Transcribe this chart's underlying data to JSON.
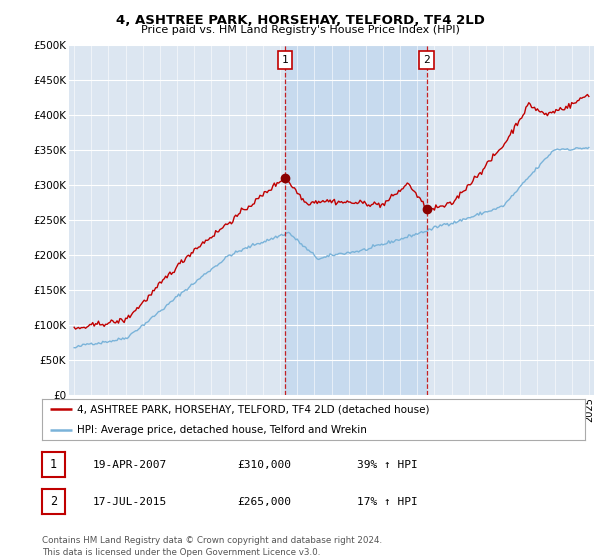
{
  "title": "4, ASHTREE PARK, HORSEHAY, TELFORD, TF4 2LD",
  "subtitle": "Price paid vs. HM Land Registry's House Price Index (HPI)",
  "ylabel_ticks": [
    "£0",
    "£50K",
    "£100K",
    "£150K",
    "£200K",
    "£250K",
    "£300K",
    "£350K",
    "£400K",
    "£450K",
    "£500K"
  ],
  "ytick_values": [
    0,
    50000,
    100000,
    150000,
    200000,
    250000,
    300000,
    350000,
    400000,
    450000,
    500000
  ],
  "ylim": [
    0,
    500000
  ],
  "hpi_color": "#7ab3d9",
  "price_color": "#c00000",
  "marker_dot_color": "#8b0000",
  "marker1_x": 2007.3,
  "marker1_y": 310000,
  "marker2_x": 2015.55,
  "marker2_y": 265000,
  "shade_color": "#c5d9ee",
  "legend_line1": "4, ASHTREE PARK, HORSEHAY, TELFORD, TF4 2LD (detached house)",
  "legend_line2": "HPI: Average price, detached house, Telford and Wrekin",
  "table_row1": [
    "1",
    "19-APR-2007",
    "£310,000",
    "39% ↑ HPI"
  ],
  "table_row2": [
    "2",
    "17-JUL-2015",
    "£265,000",
    "17% ↑ HPI"
  ],
  "footer": "Contains HM Land Registry data © Crown copyright and database right 2024.\nThis data is licensed under the Open Government Licence v3.0.",
  "background_chart": "#dce6f1",
  "background_fig": "#ffffff",
  "grid_color": "#ffffff",
  "xlim_left": 1994.7,
  "xlim_right": 2025.3
}
